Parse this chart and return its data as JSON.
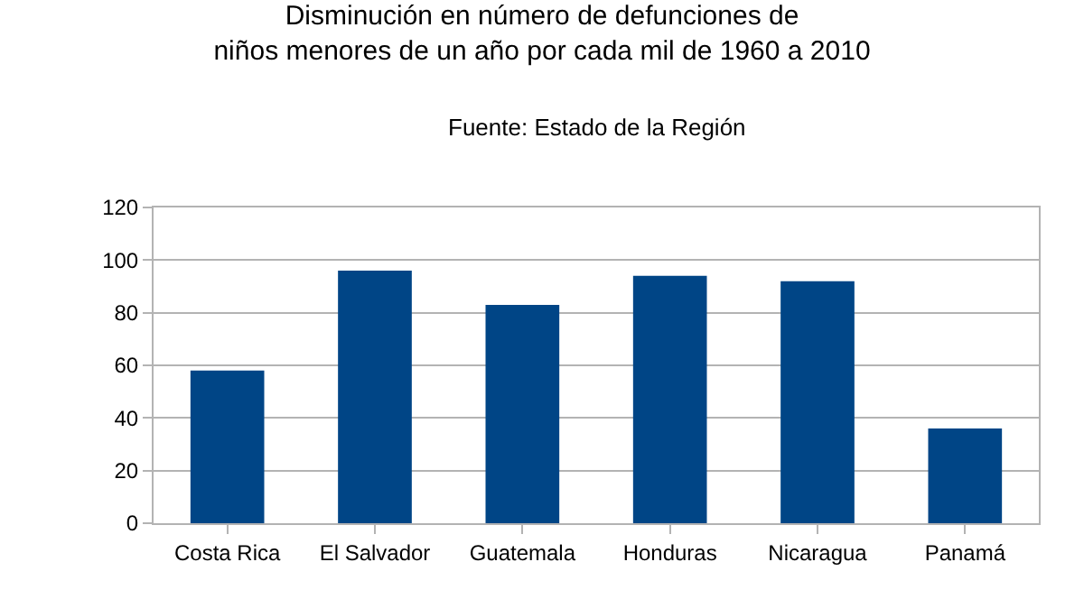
{
  "chart_data": {
    "type": "bar",
    "title": "Disminución en número de defunciones de\nniños menores de un año por cada mil de 1960 a 2010",
    "subtitle": "Fuente: Estado de la Región",
    "categories": [
      "Costa Rica",
      "El Salvador",
      "Guatemala",
      "Honduras",
      "Nicaragua",
      "Panamá"
    ],
    "values": [
      58,
      96,
      83,
      94,
      92,
      36
    ],
    "color": "#004586",
    "ylim": [
      0,
      120
    ],
    "yticks": [
      0,
      20,
      40,
      60,
      80,
      100,
      120
    ],
    "grid": "y"
  }
}
